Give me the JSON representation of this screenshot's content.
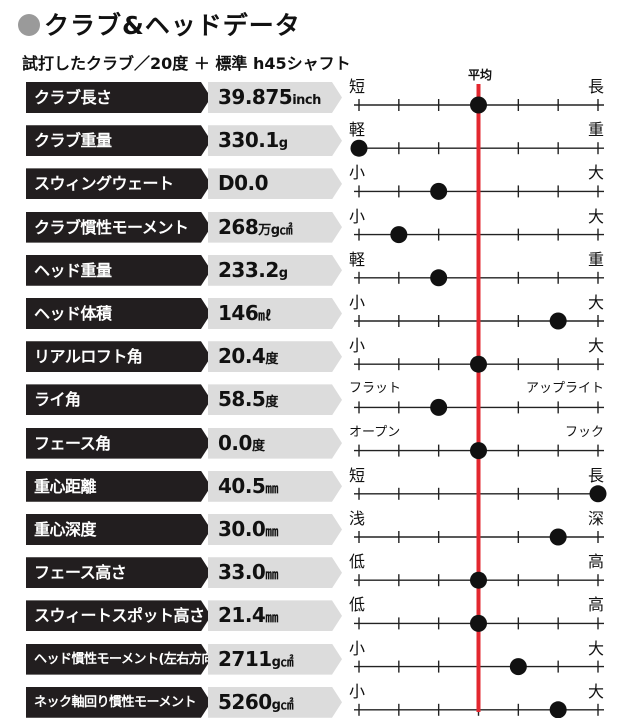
{
  "title": "クラブ&ヘッドデータ",
  "subtitle": "試打したクラブ／20度 ＋ 標準 h45シャフト",
  "chart_data": {
    "type": "scatter",
    "title": "クラブ&ヘッドデータ",
    "subtitle": "試打したクラブ／20度 ＋ 標準 h45シャフト",
    "average_label": "平均",
    "scale": {
      "min": -3,
      "max": 3,
      "average": 0
    },
    "rows": [
      {
        "name": "クラブ長さ",
        "value": "39.875",
        "unit": "inch",
        "left": "短",
        "right": "長",
        "position": 0
      },
      {
        "name": "クラブ重量",
        "value": "330.1",
        "unit": "g",
        "left": "軽",
        "right": "重",
        "position": -3
      },
      {
        "name": "スウィングウェート",
        "value": "D0.0",
        "unit": "",
        "left": "小",
        "right": "大",
        "position": -1
      },
      {
        "name": "クラブ慣性モーメント",
        "value": "268",
        "unit": "万g㎠",
        "left": "小",
        "right": "大",
        "position": -2
      },
      {
        "name": "ヘッド重量",
        "value": "233.2",
        "unit": "g",
        "left": "軽",
        "right": "重",
        "position": -1
      },
      {
        "name": "ヘッド体積",
        "value": "146",
        "unit": "㎖",
        "left": "小",
        "right": "大",
        "position": 2
      },
      {
        "name": "リアルロフト角",
        "value": "20.4",
        "unit": "度",
        "left": "小",
        "right": "大",
        "position": 0
      },
      {
        "name": "ライ角",
        "value": "58.5",
        "unit": "度",
        "left": "フラット",
        "right": "アップライト",
        "position": -1
      },
      {
        "name": "フェース角",
        "value": "0.0",
        "unit": "度",
        "left": "オープン",
        "right": "フック",
        "position": 0
      },
      {
        "name": "重心距離",
        "value": "40.5",
        "unit": "㎜",
        "left": "短",
        "right": "長",
        "position": 3
      },
      {
        "name": "重心深度",
        "value": "30.0",
        "unit": "㎜",
        "left": "浅",
        "right": "深",
        "position": 2
      },
      {
        "name": "フェース高さ",
        "value": "33.0",
        "unit": "㎜",
        "left": "低",
        "right": "高",
        "position": 0
      },
      {
        "name": "スウィートスポット高さ",
        "value": "21.4",
        "unit": "㎜",
        "left": "低",
        "right": "高",
        "position": 0
      },
      {
        "name": "ヘッド慣性モーメント(左右方向)",
        "value": "2711",
        "unit": "g㎠",
        "left": "小",
        "right": "大",
        "position": 1
      },
      {
        "name": "ネック軸回り慣性モーメント",
        "value": "5260",
        "unit": "g㎠",
        "left": "小",
        "right": "大",
        "position": 2
      }
    ]
  },
  "colors": {
    "average_line": "#e3272f",
    "marker": "#111111",
    "name_bg": "#221e1f",
    "value_bg": "#dcdcdc"
  }
}
